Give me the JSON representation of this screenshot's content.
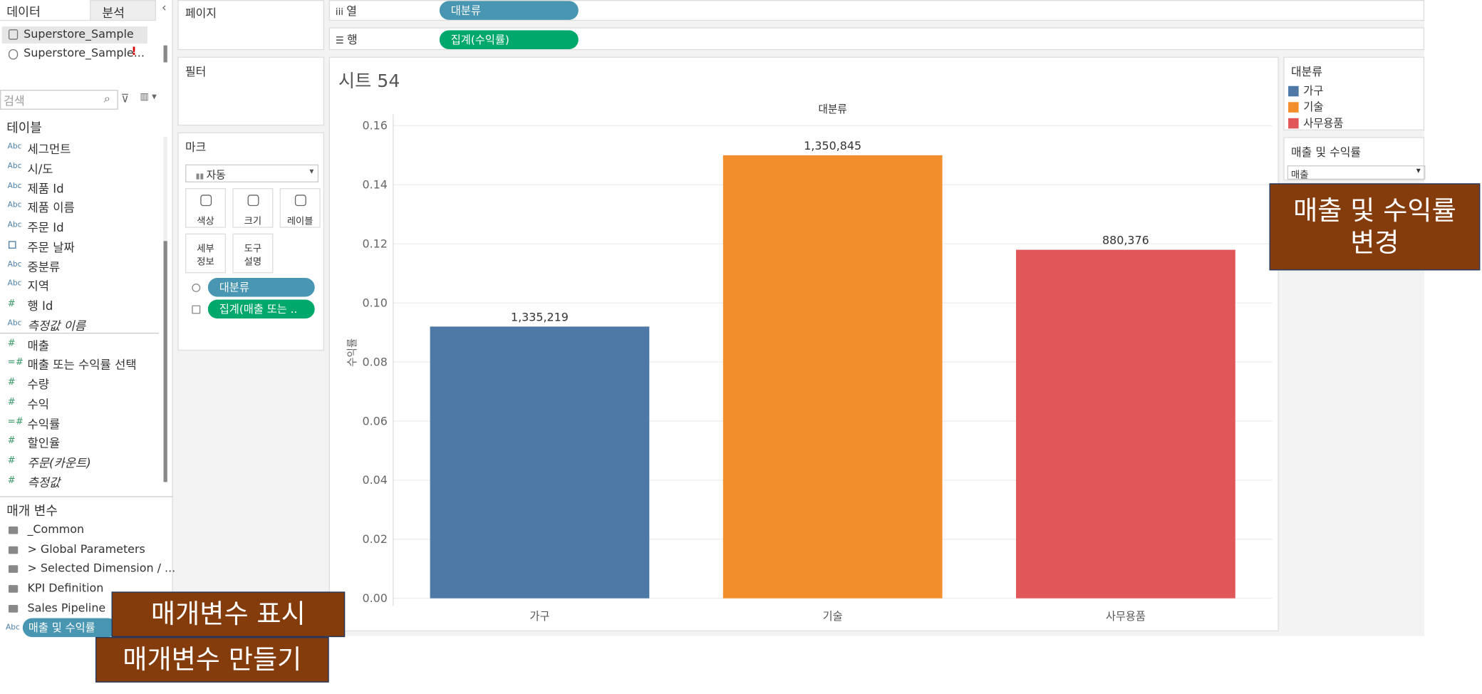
{
  "tabs": [
    "데이터",
    "분석"
  ],
  "data_sources": [
    "Superstore_Sample",
    "Superstore_Sample..."
  ],
  "search_placeholder": "검색",
  "tables_header": "테이블",
  "fields": [
    {
      "icon": "Abc",
      "name": "세그먼트"
    },
    {
      "icon": "Abc",
      "name": "시/도"
    },
    {
      "icon": "Abc",
      "name": "제품 Id"
    },
    {
      "icon": "Abc",
      "name": "제품 이름"
    },
    {
      "icon": "Abc",
      "name": "주문 Id"
    },
    {
      "name": "주문 날짜"
    },
    {
      "icon": "Abc",
      "name": "중분류"
    },
    {
      "icon": "Abc",
      "name": "지역"
    },
    {
      "icon": "#",
      "name": "행 Id"
    },
    {
      "icon": "Abc",
      "name": "측정값 이름",
      "italic": true
    },
    {
      "icon": "#",
      "name": "매출"
    },
    {
      "icon": "=#",
      "name": "매출 또는 수익률 선택"
    },
    {
      "icon": "#",
      "name": "수량"
    },
    {
      "icon": "#",
      "name": "수익"
    },
    {
      "icon": "=#",
      "name": "수익률"
    },
    {
      "icon": "#",
      "name": "할인율"
    },
    {
      "icon": "#",
      "name": "주문(카운트)",
      "italic": true
    },
    {
      "icon": "#",
      "name": "측정값",
      "italic": true
    }
  ],
  "params_header": "매개 변수",
  "param_folders": [
    "_Common",
    "> Global Parameters",
    "> Selected Dimension / ...",
    "KPI Definition",
    "Sales Pipeline"
  ],
  "param_pill": {
    "icon": "Abc",
    "name": "매출 및 수익률"
  },
  "pages_label": "페이지",
  "filters_label": "필터",
  "marks_label": "마크",
  "mark_type": "자동",
  "mark_buttons": [
    [
      "색상"
    ],
    [
      "크기"
    ],
    [
      "레이블"
    ],
    [
      "세부",
      "정보"
    ],
    [
      "도구",
      "설명"
    ]
  ],
  "mark_pills": [
    "대분류",
    "집계(매출 또는 .."
  ],
  "columns_shelf": {
    "label": "열",
    "pill": "대분류"
  },
  "rows_shelf": {
    "label": "행",
    "pill": "집계(수익률)"
  },
  "sheet_title": "시트 54",
  "legend": {
    "title": "대분류"
  },
  "param_control": {
    "title": "매출 및 수익률",
    "value": "매출"
  },
  "callouts": [
    "매출 및 수익률 변경",
    "매개변수 표시",
    "매개변수 만들기"
  ],
  "chart_data": {
    "type": "bar",
    "header": "대분류",
    "y_label": "수익률",
    "categories": [
      "가구",
      "기술",
      "사무용품"
    ],
    "values": [
      0.092,
      0.15,
      0.118
    ],
    "bar_labels": [
      "1,335,219",
      "1,350,845",
      "880,376"
    ],
    "colors": [
      "#4e79a7",
      "#f28e2b",
      "#e15759"
    ],
    "ylim": [
      0,
      0.16
    ],
    "yticks": [
      {
        "value": 0,
        "label": "0.00"
      },
      0.02,
      0.04,
      0.06,
      0.08,
      {
        "value": 0.1,
        "label": "0.10"
      },
      0.12,
      0.14,
      0.16
    ],
    "grid": true
  }
}
